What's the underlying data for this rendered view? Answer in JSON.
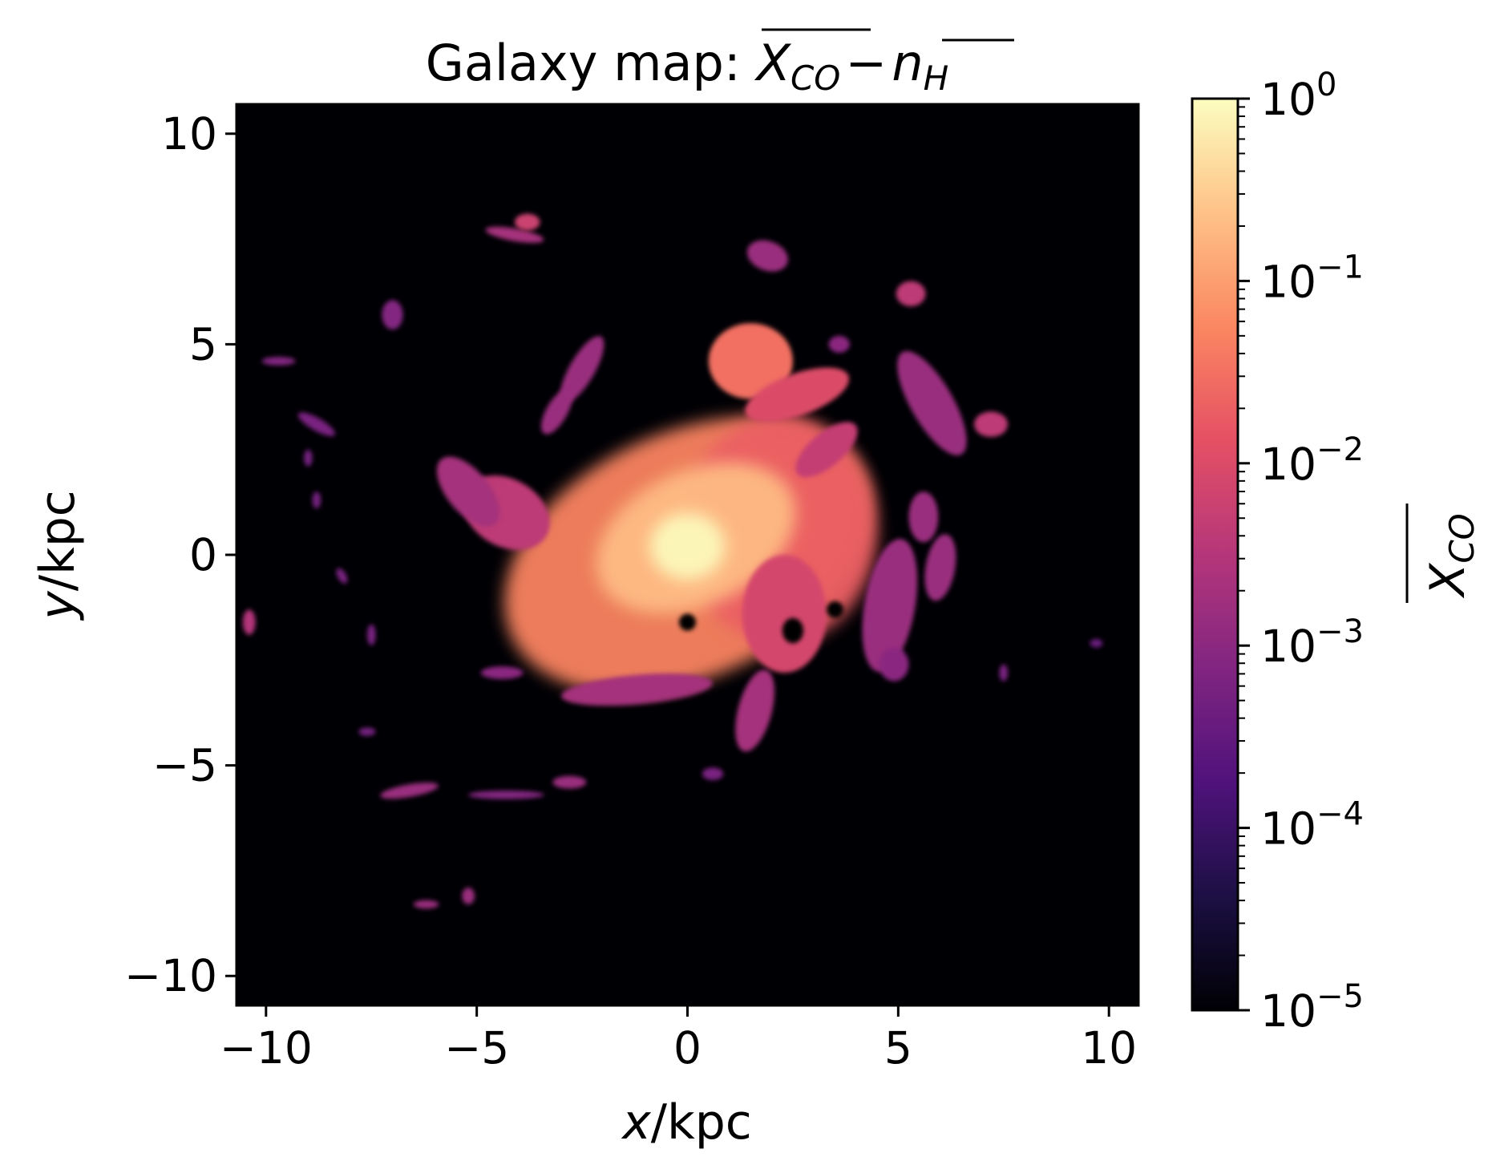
{
  "chart_data": {
    "type": "heatmap",
    "title": {
      "prefix": "Galaxy map: ",
      "var1": "X",
      "var1_sub": "CO",
      "minus": "−",
      "var2": "n",
      "var2_sub": "H"
    },
    "xlabel": {
      "var": "x",
      "unit": "/kpc"
    },
    "ylabel": {
      "var": "y",
      "unit": "/kpc"
    },
    "xlim": [
      -10.7,
      10.7
    ],
    "ylim": [
      -10.7,
      10.7
    ],
    "xticks": [
      -10,
      -5,
      0,
      5,
      10
    ],
    "yticks": [
      -10,
      -5,
      0,
      5,
      10
    ],
    "xtick_labels": [
      "−10",
      "−5",
      "0",
      "5",
      "10"
    ],
    "ytick_labels": [
      "−10",
      "−5",
      "0",
      "5",
      "10"
    ],
    "colorbar": {
      "label": {
        "var": "X",
        "sub": "CO"
      },
      "scale": "log",
      "colormap": "magma",
      "range": [
        1e-05,
        1
      ],
      "ticks": [
        1e-05,
        0.0001,
        0.001,
        0.01,
        0.1,
        1
      ],
      "tick_labels": [
        {
          "base": "10",
          "exp": "−5"
        },
        {
          "base": "10",
          "exp": "−4"
        },
        {
          "base": "10",
          "exp": "−3"
        },
        {
          "base": "10",
          "exp": "−2"
        },
        {
          "base": "10",
          "exp": "−1"
        },
        {
          "base": "10",
          "exp": "0"
        }
      ]
    },
    "background_color": "#000004",
    "colormap_stops": [
      "#000004",
      "#1c1044",
      "#4f127b",
      "#812581",
      "#b5367a",
      "#e55064",
      "#fb8761",
      "#fec287",
      "#fcfdbf"
    ],
    "features": [
      {
        "kind": "disk",
        "x": 0.0,
        "y": 0.0,
        "rx": 4.6,
        "ry": 2.9,
        "rotation": -25,
        "value": 0.05
      },
      {
        "kind": "disk",
        "x": 2.2,
        "y": 0.6,
        "rx": 2.3,
        "ry": 2.7,
        "rotation": 0,
        "value": 0.02
      },
      {
        "kind": "disk",
        "x": 0.2,
        "y": 0.4,
        "rx": 2.5,
        "ry": 1.6,
        "rotation": -25,
        "value": 0.2
      },
      {
        "kind": "core",
        "x": 0.0,
        "y": 0.2,
        "rx": 0.9,
        "ry": 0.8,
        "rotation": 0,
        "value": 0.9
      },
      {
        "kind": "clump",
        "x": 1.5,
        "y": 4.6,
        "rx": 1.0,
        "ry": 0.9,
        "rotation": 0,
        "value": 0.03
      },
      {
        "kind": "clump",
        "x": 2.6,
        "y": 3.8,
        "rx": 1.3,
        "ry": 0.5,
        "rotation": -20,
        "value": 0.01
      },
      {
        "kind": "clump",
        "x": 3.3,
        "y": 2.5,
        "rx": 0.9,
        "ry": 0.4,
        "rotation": -40,
        "value": 0.005
      },
      {
        "kind": "clump",
        "x": -4.3,
        "y": 1.0,
        "rx": 1.1,
        "ry": 0.8,
        "rotation": 30,
        "value": 0.004
      },
      {
        "kind": "clump",
        "x": -5.2,
        "y": 1.5,
        "rx": 1.0,
        "ry": 0.5,
        "rotation": 50,
        "value": 0.002
      },
      {
        "kind": "clump",
        "x": -2.5,
        "y": 4.4,
        "rx": 0.9,
        "ry": 0.3,
        "rotation": -60,
        "value": 0.0015
      },
      {
        "kind": "clump",
        "x": -3.1,
        "y": 3.4,
        "rx": 0.6,
        "ry": 0.25,
        "rotation": -60,
        "value": 0.0015
      },
      {
        "kind": "clump",
        "x": -1.2,
        "y": -3.2,
        "rx": 1.8,
        "ry": 0.35,
        "rotation": -5,
        "value": 0.002
      },
      {
        "kind": "clump",
        "x": 1.6,
        "y": -3.7,
        "rx": 0.4,
        "ry": 1.0,
        "rotation": 15,
        "value": 0.002
      },
      {
        "kind": "clump",
        "x": 2.3,
        "y": -1.4,
        "rx": 1.0,
        "ry": 1.4,
        "rotation": 0,
        "value": 0.008
      },
      {
        "kind": "clump",
        "x": 4.8,
        "y": -1.2,
        "rx": 0.6,
        "ry": 1.6,
        "rotation": 10,
        "value": 0.0015
      },
      {
        "kind": "clump",
        "x": 5.8,
        "y": 3.6,
        "rx": 0.5,
        "ry": 1.4,
        "rotation": -30,
        "value": 0.0015
      },
      {
        "kind": "clump",
        "x": 7.2,
        "y": 3.1,
        "rx": 0.4,
        "ry": 0.3,
        "rotation": 0,
        "value": 0.004
      },
      {
        "kind": "clump",
        "x": 5.6,
        "y": 0.9,
        "rx": 0.35,
        "ry": 0.6,
        "rotation": 0,
        "value": 0.0015
      },
      {
        "kind": "clump",
        "x": 6.0,
        "y": -0.3,
        "rx": 0.35,
        "ry": 0.8,
        "rotation": 10,
        "value": 0.0015
      },
      {
        "kind": "clump",
        "x": 4.9,
        "y": -2.6,
        "rx": 0.35,
        "ry": 0.4,
        "rotation": 0,
        "value": 0.001
      },
      {
        "kind": "clump",
        "x": 1.9,
        "y": 7.1,
        "rx": 0.5,
        "ry": 0.35,
        "rotation": 20,
        "value": 0.0015
      },
      {
        "kind": "clump",
        "x": 5.3,
        "y": 6.2,
        "rx": 0.35,
        "ry": 0.3,
        "rotation": 0,
        "value": 0.004
      },
      {
        "kind": "clump",
        "x": 3.6,
        "y": 5.0,
        "rx": 0.25,
        "ry": 0.2,
        "rotation": 0,
        "value": 0.001
      },
      {
        "kind": "clump",
        "x": -4.1,
        "y": 7.6,
        "rx": 0.7,
        "ry": 0.15,
        "rotation": 10,
        "value": 0.002
      },
      {
        "kind": "clump",
        "x": -3.8,
        "y": 7.9,
        "rx": 0.3,
        "ry": 0.2,
        "rotation": 0,
        "value": 0.006
      },
      {
        "kind": "clump",
        "x": -7.0,
        "y": 5.7,
        "rx": 0.25,
        "ry": 0.35,
        "rotation": 0,
        "value": 0.0008
      },
      {
        "kind": "clump",
        "x": -9.7,
        "y": 4.6,
        "rx": 0.4,
        "ry": 0.1,
        "rotation": 0,
        "value": 0.0008
      },
      {
        "kind": "clump",
        "x": -8.8,
        "y": 3.1,
        "rx": 0.5,
        "ry": 0.15,
        "rotation": 30,
        "value": 0.0006
      },
      {
        "kind": "clump",
        "x": -9.0,
        "y": 2.3,
        "rx": 0.1,
        "ry": 0.2,
        "rotation": 0,
        "value": 0.0005
      },
      {
        "kind": "clump",
        "x": -8.8,
        "y": 1.3,
        "rx": 0.1,
        "ry": 0.2,
        "rotation": 0,
        "value": 0.0005
      },
      {
        "kind": "clump",
        "x": -8.2,
        "y": -0.5,
        "rx": 0.1,
        "ry": 0.2,
        "rotation": -30,
        "value": 0.0006
      },
      {
        "kind": "clump",
        "x": -7.5,
        "y": -1.9,
        "rx": 0.1,
        "ry": 0.25,
        "rotation": 0,
        "value": 0.0006
      },
      {
        "kind": "clump",
        "x": -10.4,
        "y": -1.6,
        "rx": 0.15,
        "ry": 0.3,
        "rotation": 0,
        "value": 0.003
      },
      {
        "kind": "clump",
        "x": -4.4,
        "y": -2.8,
        "rx": 0.5,
        "ry": 0.15,
        "rotation": 0,
        "value": 0.001
      },
      {
        "kind": "clump",
        "x": -7.6,
        "y": -4.2,
        "rx": 0.2,
        "ry": 0.1,
        "rotation": 0,
        "value": 0.0005
      },
      {
        "kind": "clump",
        "x": -6.6,
        "y": -5.6,
        "rx": 0.7,
        "ry": 0.15,
        "rotation": -10,
        "value": 0.0015
      },
      {
        "kind": "clump",
        "x": -4.3,
        "y": -5.7,
        "rx": 0.9,
        "ry": 0.1,
        "rotation": 0,
        "value": 0.0008
      },
      {
        "kind": "clump",
        "x": -2.8,
        "y": -5.4,
        "rx": 0.4,
        "ry": 0.15,
        "rotation": 0,
        "value": 0.0015
      },
      {
        "kind": "clump",
        "x": 0.6,
        "y": -5.2,
        "rx": 0.25,
        "ry": 0.15,
        "rotation": 0,
        "value": 0.0006
      },
      {
        "kind": "clump",
        "x": -6.2,
        "y": -8.3,
        "rx": 0.3,
        "ry": 0.1,
        "rotation": 0,
        "value": 0.0015
      },
      {
        "kind": "clump",
        "x": -5.2,
        "y": -8.1,
        "rx": 0.15,
        "ry": 0.2,
        "rotation": 0,
        "value": 0.0015
      },
      {
        "kind": "clump",
        "x": 7.5,
        "y": -2.8,
        "rx": 0.1,
        "ry": 0.2,
        "rotation": 0,
        "value": 0.0006
      },
      {
        "kind": "clump",
        "x": 9.7,
        "y": -2.1,
        "rx": 0.15,
        "ry": 0.1,
        "rotation": 0,
        "value": 0.0004
      },
      {
        "kind": "clump",
        "x": 0.0,
        "y": -1.6,
        "rx": 0.2,
        "ry": 0.2,
        "rotation": 0,
        "value": 1e-05
      },
      {
        "kind": "clump",
        "x": 2.5,
        "y": -1.8,
        "rx": 0.25,
        "ry": 0.3,
        "rotation": 0,
        "value": 1e-05
      },
      {
        "kind": "clump",
        "x": 3.5,
        "y": -1.3,
        "rx": 0.2,
        "ry": 0.2,
        "rotation": 0,
        "value": 1e-05
      }
    ]
  }
}
